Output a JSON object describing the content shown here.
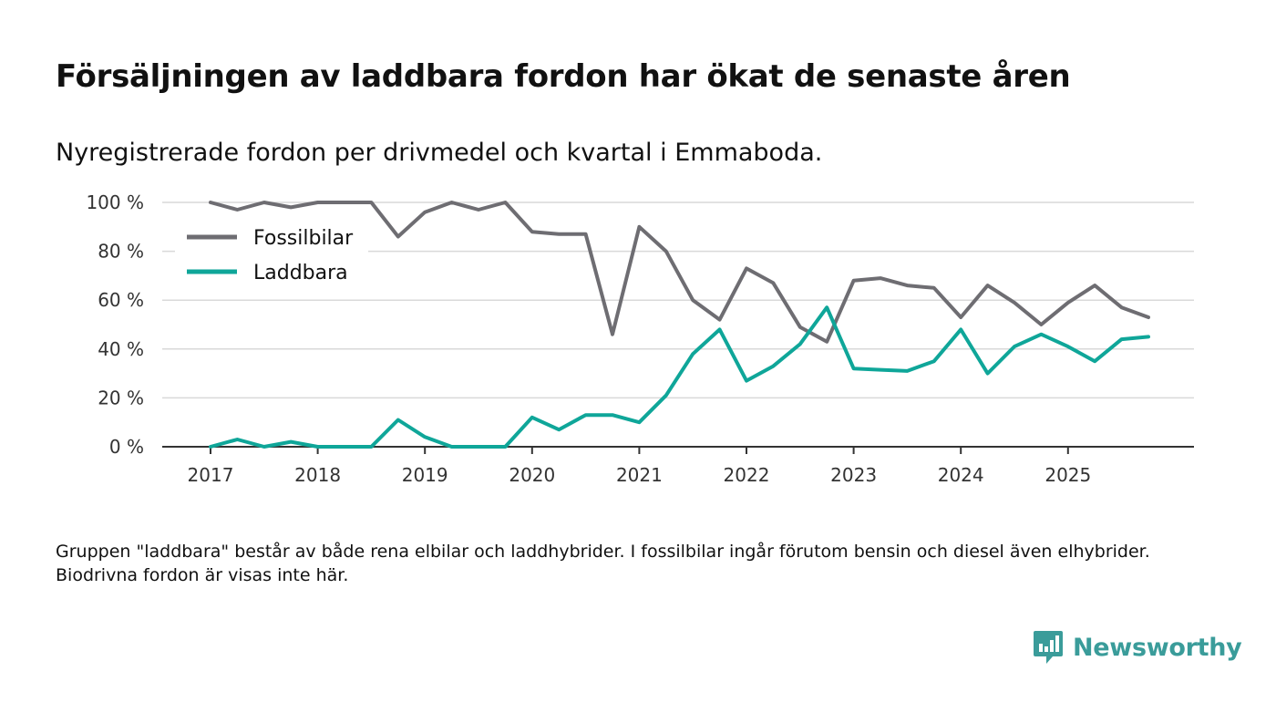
{
  "title": "Försäljningen av laddbara fordon har ökat de senaste åren",
  "subtitle": "Nyregistrerade fordon per drivmedel och kvartal i Emmaboda.",
  "note": "Gruppen \"laddbara\" består av både rena elbilar och laddhybrider. I fossilbilar ingår förutom bensin och diesel även elhybrider. Biodrivna fordon är visas inte här.",
  "brand": {
    "name": "Newsworthy",
    "color": "#3a9c9a"
  },
  "chart_data": {
    "type": "line",
    "title": "Försäljningen av laddbara fordon har ökat de senaste åren",
    "xlabel": "",
    "ylabel": "",
    "ylim": [
      0,
      100
    ],
    "yticks": [
      0,
      20,
      40,
      60,
      80,
      100
    ],
    "ytick_labels": [
      "0 %",
      "20 %",
      "40 %",
      "60 %",
      "80 %",
      "100 %"
    ],
    "xlim": [
      2017,
      2025.75
    ],
    "xticks": [
      2017,
      2018,
      2019,
      2020,
      2021,
      2022,
      2023,
      2024,
      2025
    ],
    "xtick_labels": [
      "2017",
      "2018",
      "2019",
      "2020",
      "2021",
      "2022",
      "2023",
      "2024",
      "2025"
    ],
    "grid": true,
    "legend_position": "top-left",
    "x": [
      2017,
      2017.25,
      2017.5,
      2017.75,
      2018,
      2018.25,
      2018.5,
      2018.75,
      2019,
      2019.25,
      2019.5,
      2019.75,
      2020,
      2020.25,
      2020.5,
      2020.75,
      2021,
      2021.25,
      2021.5,
      2021.75,
      2022,
      2022.25,
      2022.5,
      2022.75,
      2023,
      2023.25,
      2023.5,
      2023.75,
      2024,
      2024.25,
      2024.5,
      2024.75,
      2025,
      2025.25,
      2025.5,
      2025.75
    ],
    "series": [
      {
        "name": "Fossilbilar",
        "color": "#6e6d72",
        "values": [
          100,
          97,
          100,
          98,
          100,
          100,
          100,
          86,
          96,
          100,
          97,
          100,
          88,
          87,
          87,
          46,
          90,
          80,
          60,
          52,
          73,
          67,
          49,
          43,
          68,
          69,
          66,
          65,
          53,
          66,
          59,
          50,
          59,
          66,
          57,
          53
        ]
      },
      {
        "name": "Laddbara",
        "color": "#0fa699",
        "values": [
          0,
          3,
          0,
          2,
          0,
          0,
          0,
          11,
          4,
          0,
          0,
          0,
          12,
          7,
          13,
          13,
          10,
          21,
          38,
          48,
          27,
          33,
          42,
          57,
          32,
          31.5,
          31,
          35,
          48,
          30,
          41,
          46,
          41,
          35,
          44,
          45
        ]
      }
    ]
  }
}
